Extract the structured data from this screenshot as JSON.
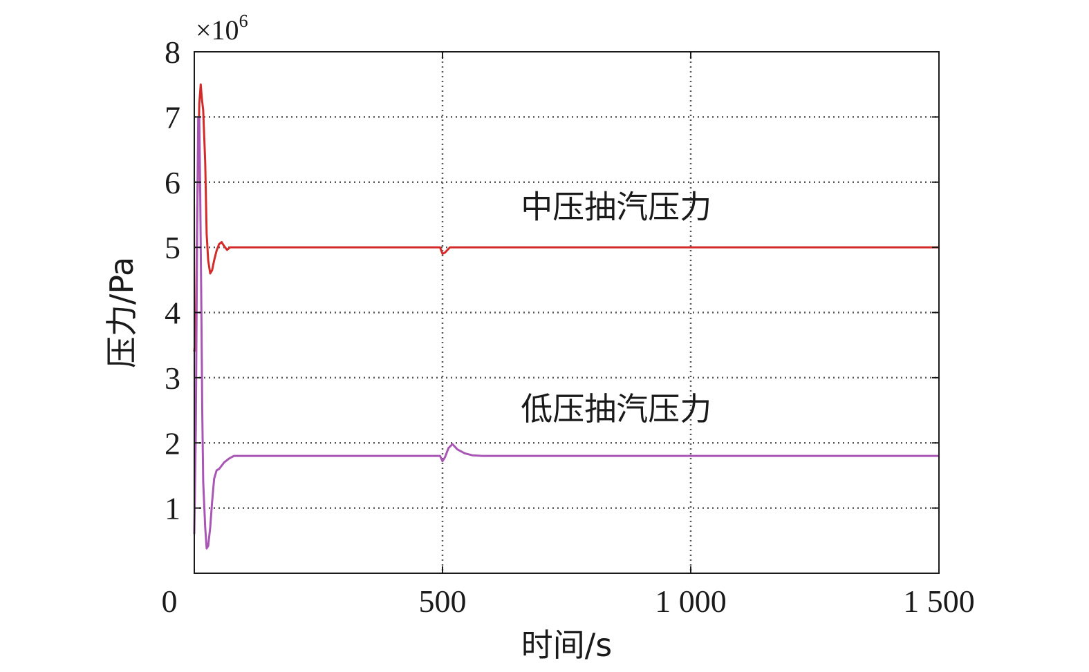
{
  "chart_data": {
    "type": "line",
    "title": "",
    "xlabel": "时间/s",
    "ylabel": "压力/Pa",
    "y_multiplier_base": "×10",
    "y_multiplier_exp": "6",
    "xlim": [
      0,
      1500
    ],
    "ylim": [
      0,
      8
    ],
    "x_ticks": [
      0,
      500,
      1000,
      1500
    ],
    "x_tick_labels": [
      "0",
      "500",
      "1 000",
      "1 500"
    ],
    "y_ticks": [
      1,
      2,
      3,
      4,
      5,
      6,
      7,
      8
    ],
    "y_tick_labels": [
      "1",
      "2",
      "3",
      "4",
      "5",
      "6",
      "7",
      "8"
    ],
    "grid": true,
    "series": [
      {
        "name": "中压抽汽压力",
        "color": "#d42a2a",
        "x": [
          0,
          3,
          6,
          10,
          13,
          15,
          18,
          22,
          25,
          28,
          32,
          36,
          40,
          45,
          50,
          55,
          60,
          66,
          72,
          78,
          85,
          95,
          110,
          150,
          300,
          495,
          500,
          505,
          510,
          515,
          525,
          540,
          600,
          800,
          1000,
          1200,
          1500
        ],
        "y": [
          3.4,
          3.7,
          5.6,
          7.2,
          7.5,
          7.3,
          7.1,
          6.3,
          5.2,
          4.8,
          4.6,
          4.65,
          4.8,
          4.95,
          5.05,
          5.08,
          5.02,
          4.96,
          5.0,
          5.0,
          5.0,
          5.0,
          5.0,
          5.0,
          5.0,
          5.0,
          4.9,
          4.92,
          4.96,
          5.0,
          5.0,
          5.0,
          5.0,
          5.0,
          5.0,
          5.0,
          5.0
        ],
        "label_at": [
          850,
          5.45
        ]
      },
      {
        "name": "低压抽汽压力",
        "color": "#a855b5",
        "x": [
          0,
          3,
          6,
          8,
          10,
          12,
          14,
          16,
          18,
          22,
          25,
          28,
          32,
          36,
          40,
          45,
          50,
          60,
          70,
          80,
          100,
          120,
          150,
          300,
          495,
          500,
          505,
          512,
          520,
          530,
          545,
          560,
          580,
          700,
          1000,
          1200,
          1500
        ],
        "y": [
          0.6,
          2.2,
          5.5,
          7.0,
          7.0,
          5.8,
          4.2,
          2.5,
          1.4,
          0.7,
          0.38,
          0.42,
          0.7,
          1.1,
          1.45,
          1.58,
          1.6,
          1.7,
          1.76,
          1.8,
          1.8,
          1.8,
          1.8,
          1.8,
          1.8,
          1.72,
          1.78,
          1.92,
          1.98,
          1.9,
          1.84,
          1.81,
          1.8,
          1.8,
          1.8,
          1.8,
          1.8
        ],
        "label_at": [
          850,
          2.35
        ]
      }
    ]
  }
}
